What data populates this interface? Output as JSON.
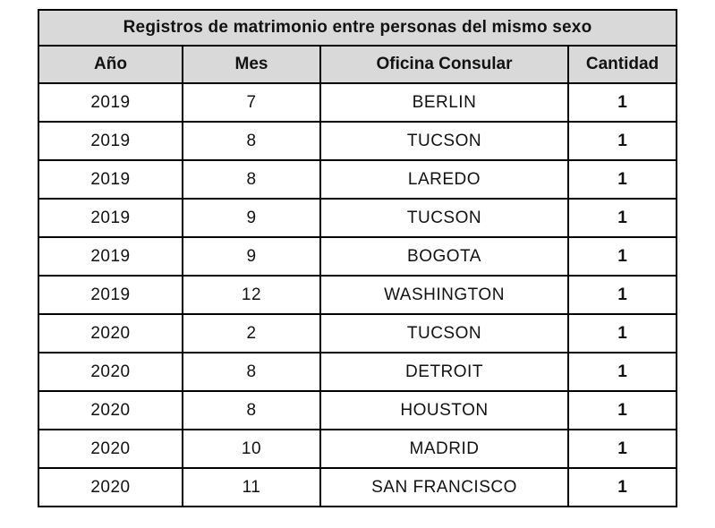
{
  "chart_data": {
    "type": "table",
    "title": "Registros de matrimonio entre personas del mismo sexo",
    "columns": [
      "Año",
      "Mes",
      "Oficina Consular",
      "Cantidad"
    ],
    "rows": [
      {
        "year": "2019",
        "month": "7",
        "office": "BERLIN",
        "qty": "1"
      },
      {
        "year": "2019",
        "month": "8",
        "office": "TUCSON",
        "qty": "1"
      },
      {
        "year": "2019",
        "month": "8",
        "office": "LAREDO",
        "qty": "1"
      },
      {
        "year": "2019",
        "month": "9",
        "office": "TUCSON",
        "qty": "1"
      },
      {
        "year": "2019",
        "month": "9",
        "office": "BOGOTA",
        "qty": "1"
      },
      {
        "year": "2019",
        "month": "12",
        "office": "WASHINGTON",
        "qty": "1"
      },
      {
        "year": "2020",
        "month": "2",
        "office": "TUCSON",
        "qty": "1"
      },
      {
        "year": "2020",
        "month": "8",
        "office": "DETROIT",
        "qty": "1"
      },
      {
        "year": "2020",
        "month": "8",
        "office": "HOUSTON",
        "qty": "1"
      },
      {
        "year": "2020",
        "month": "10",
        "office": "MADRID",
        "qty": "1"
      },
      {
        "year": "2020",
        "month": "11",
        "office": "SAN FRANCISCO",
        "qty": "1"
      }
    ],
    "layout": {
      "legend": "none",
      "grid": "full-borders"
    },
    "colors": {
      "header_bg": "#d9d9d9",
      "row_bg": "#ffffff",
      "border": "#000000",
      "text": "#121212"
    }
  }
}
